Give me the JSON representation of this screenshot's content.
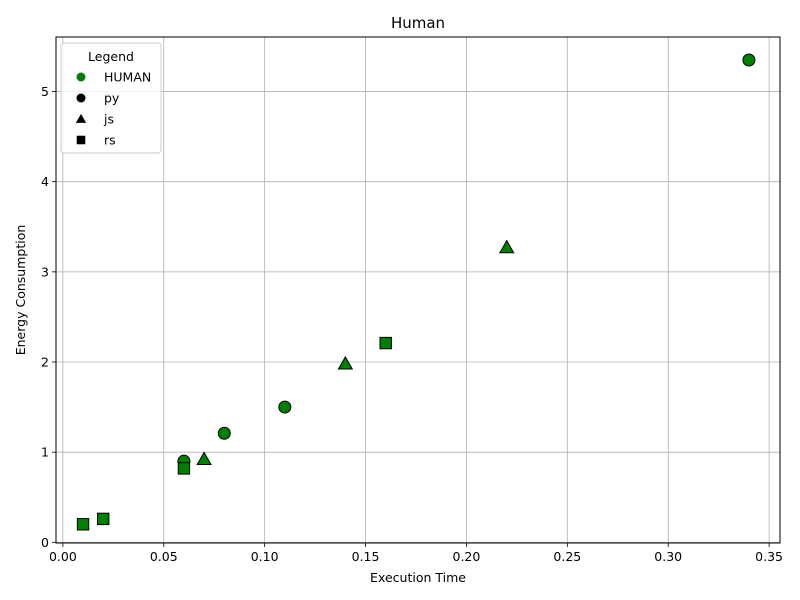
{
  "chart_data": {
    "type": "scatter",
    "title": "Human",
    "xlabel": "Execution Time",
    "ylabel": "Energy Consumption",
    "xlim": [
      -0.0034,
      0.3554
    ],
    "ylim": [
      -0.0075,
      5.605
    ],
    "xticks": [
      0.0,
      0.05,
      0.1,
      0.15,
      0.2,
      0.25,
      0.3,
      0.35
    ],
    "xtick_labels": [
      "0.00",
      "0.05",
      "0.10",
      "0.15",
      "0.20",
      "0.25",
      "0.30",
      "0.35"
    ],
    "yticks": [
      0,
      1,
      2,
      3,
      4,
      5
    ],
    "ytick_labels": [
      "0",
      "1",
      "2",
      "3",
      "4",
      "5"
    ],
    "grid": true,
    "legend": {
      "title": "Legend",
      "placement": "top-left",
      "entries": [
        {
          "label": "HUMAN",
          "marker": "circle",
          "color": "#008000"
        },
        {
          "label": "py",
          "marker": "circle",
          "color": "#000000"
        },
        {
          "label": "js",
          "marker": "triangle",
          "color": "#000000"
        },
        {
          "label": "rs",
          "marker": "square",
          "color": "#000000"
        }
      ]
    },
    "marker_color": "#008000",
    "edge_color": "#000000",
    "series": [
      {
        "name": "py",
        "marker": "circle",
        "points": [
          {
            "x": 0.34,
            "y": 5.35
          },
          {
            "x": 0.11,
            "y": 1.5
          },
          {
            "x": 0.08,
            "y": 1.21
          },
          {
            "x": 0.06,
            "y": 0.9
          }
        ]
      },
      {
        "name": "js",
        "marker": "triangle",
        "points": [
          {
            "x": 0.22,
            "y": 3.27
          },
          {
            "x": 0.14,
            "y": 1.98
          },
          {
            "x": 0.07,
            "y": 0.92
          }
        ]
      },
      {
        "name": "rs",
        "marker": "square",
        "points": [
          {
            "x": 0.16,
            "y": 2.21
          },
          {
            "x": 0.06,
            "y": 0.82
          },
          {
            "x": 0.02,
            "y": 0.26
          },
          {
            "x": 0.01,
            "y": 0.2
          }
        ]
      }
    ]
  }
}
